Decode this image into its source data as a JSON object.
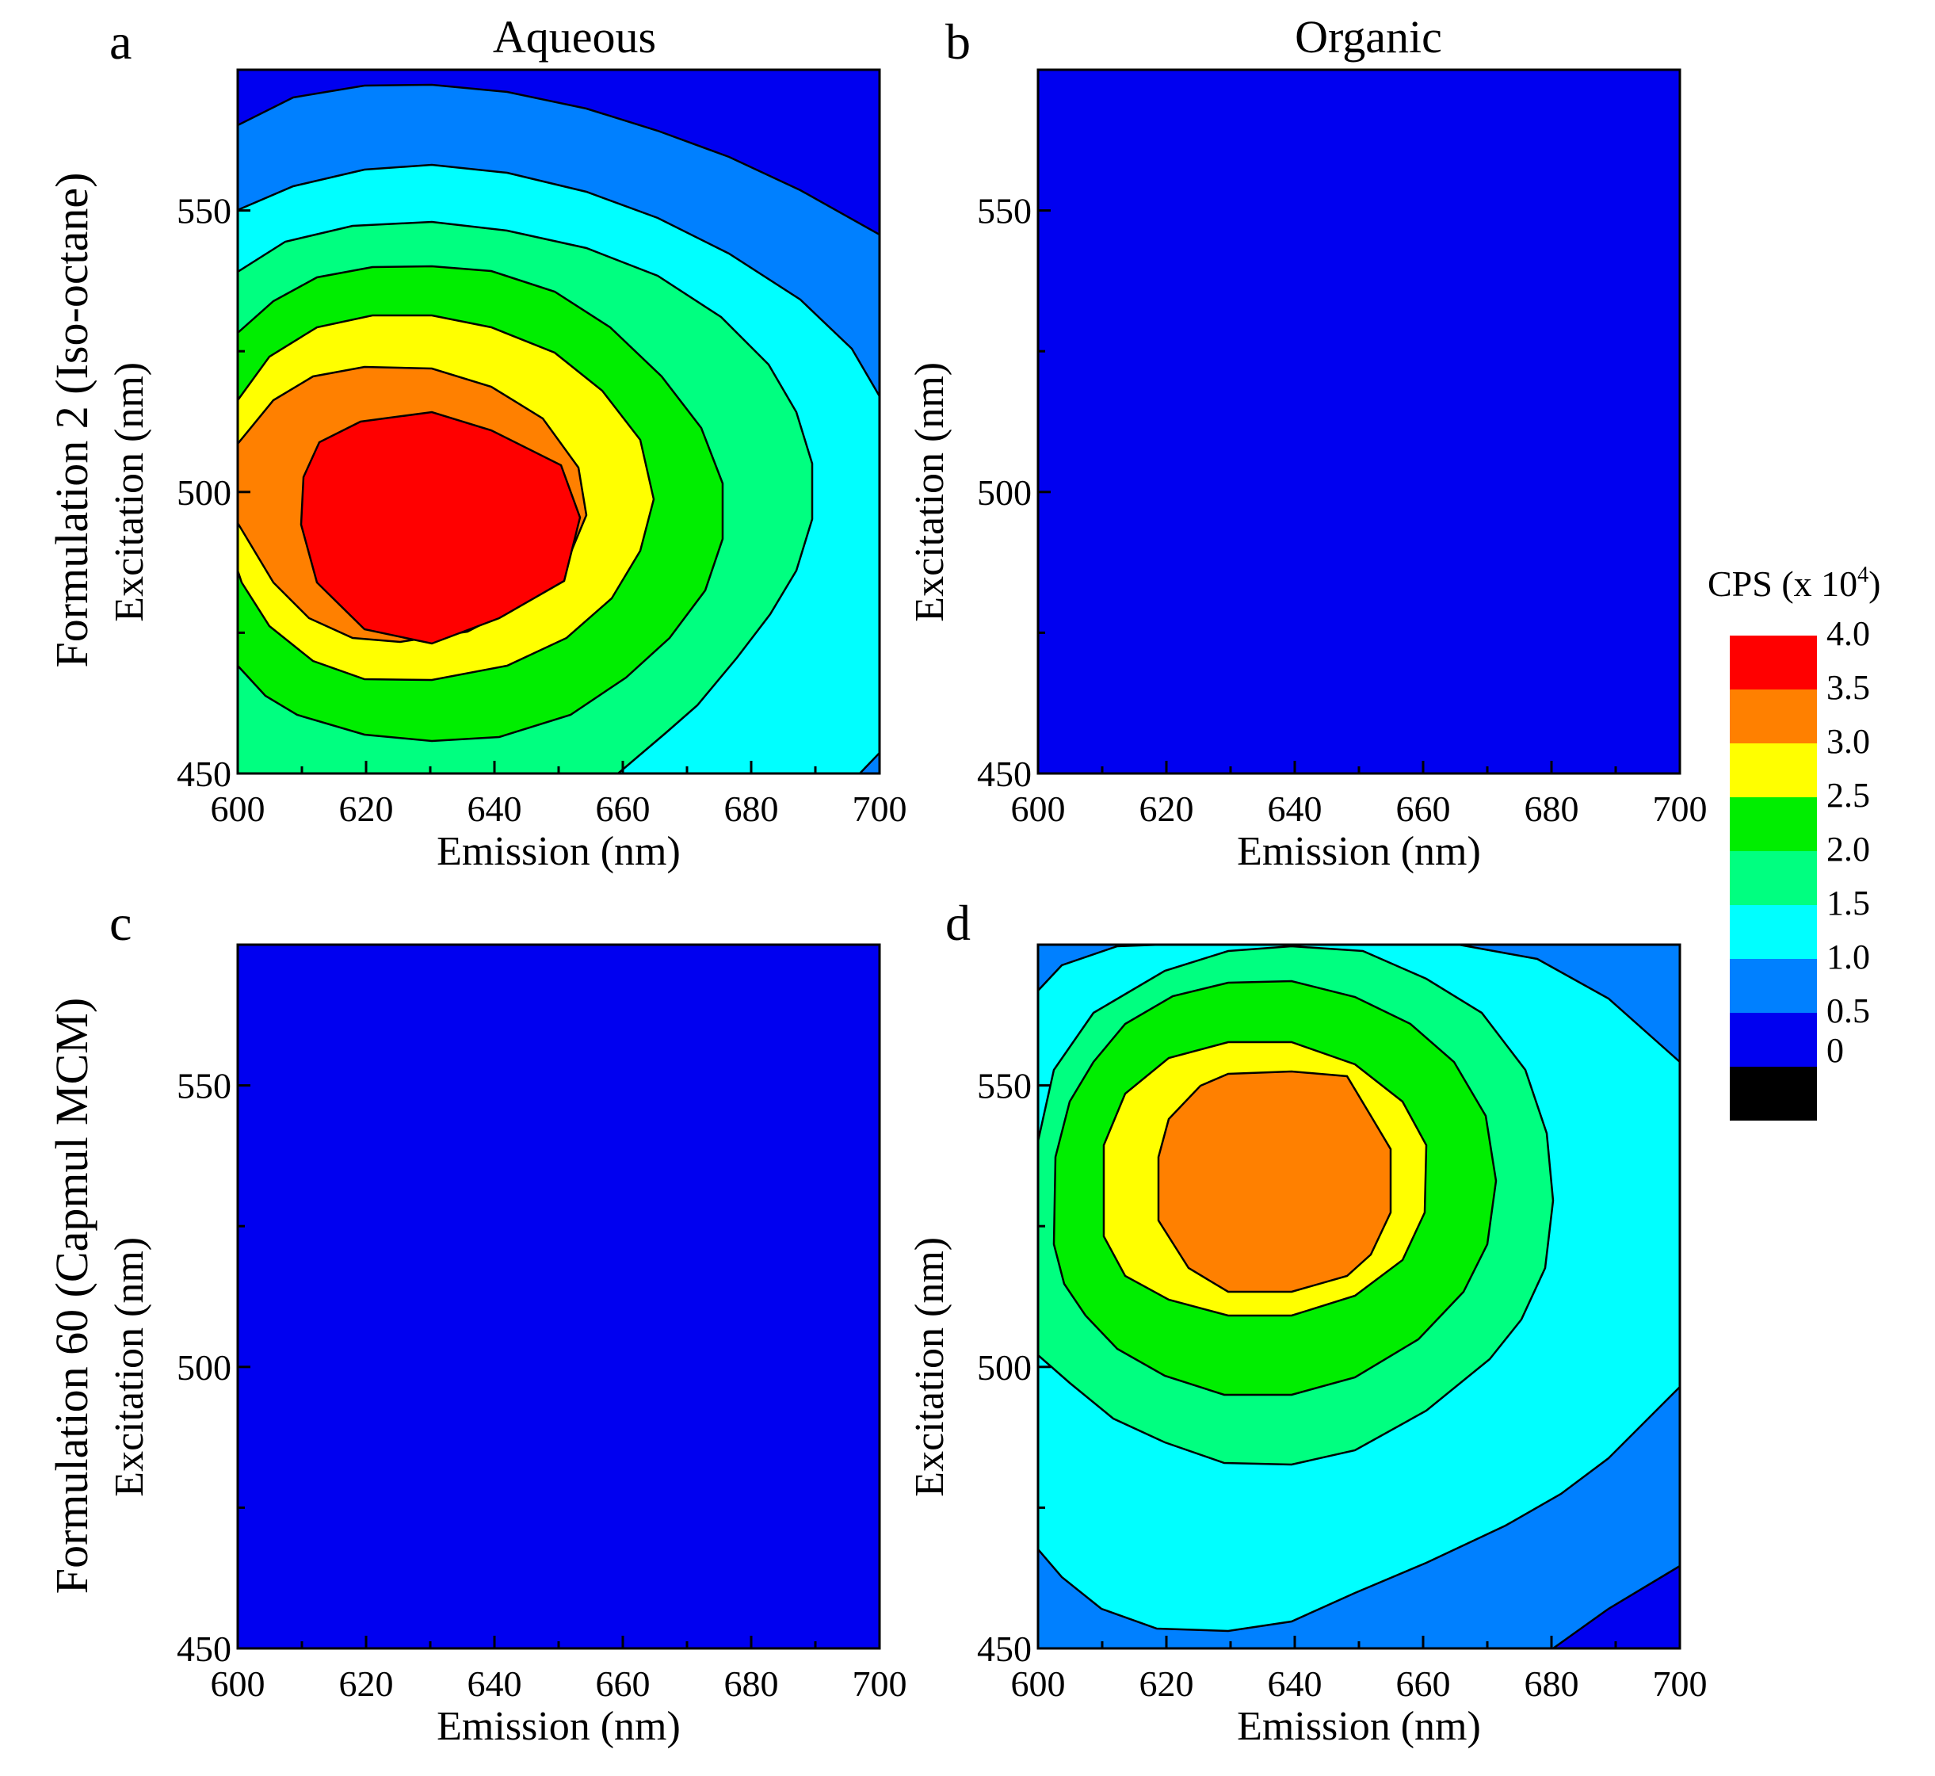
{
  "figure": {
    "col_titles": [
      "Aqueous",
      "Organic"
    ],
    "row_titles": [
      "Formulation 2 (Iso-octane)",
      "Formulation 60 (Capmul MCM)"
    ]
  },
  "colorbar": {
    "title": "CPS (x 10",
    "title_sup": "4",
    "title_close": ")",
    "levels": [
      "0",
      "0.5",
      "1.0",
      "1.5",
      "2.0",
      "2.5",
      "3.0",
      "3.5",
      "4.0"
    ],
    "colors": [
      "#000000",
      "#0000f0",
      "#0080ff",
      "#00ffff",
      "#00ff80",
      "#00ee00",
      "#ffff00",
      "#ff8000",
      "#ff0000"
    ]
  },
  "chart_data": [
    {
      "panel": "a",
      "type": "heatmap",
      "title": "Aqueous",
      "xlabel": "Emission (nm)",
      "ylabel": "Excitation (nm)",
      "row_label": "Formulation 2 (Iso-octane)",
      "xlim": [
        600,
        700
      ],
      "ylim": [
        450,
        575
      ],
      "xticks": [
        600,
        620,
        640,
        660,
        680,
        700
      ],
      "yticks": [
        450,
        500,
        550
      ],
      "z_unit": "CPS (x 10^4)",
      "peak": {
        "emission": 625,
        "excitation": 495,
        "cps_x1e4": 4.0
      },
      "contour_levels": [
        0.5,
        1.0,
        1.5,
        2.0,
        2.5,
        3.0,
        3.5
      ]
    },
    {
      "panel": "b",
      "type": "heatmap",
      "title": "Organic",
      "xlabel": "Emission (nm)",
      "ylabel": "Excitation (nm)",
      "xlim": [
        600,
        700
      ],
      "ylim": [
        450,
        575
      ],
      "xticks": [
        600,
        620,
        640,
        660,
        680,
        700
      ],
      "yticks": [
        450,
        500,
        550
      ],
      "z_unit": "CPS (x 10^4)",
      "uniform_range": [
        0,
        0.5
      ]
    },
    {
      "panel": "c",
      "type": "heatmap",
      "xlabel": "Emission (nm)",
      "ylabel": "Excitation (nm)",
      "row_label": "Formulation 60 (Capmul MCM)",
      "xlim": [
        600,
        700
      ],
      "ylim": [
        450,
        575
      ],
      "xticks": [
        600,
        620,
        640,
        660,
        680,
        700
      ],
      "yticks": [
        450,
        500,
        550
      ],
      "z_unit": "CPS (x 10^4)",
      "uniform_range": [
        0,
        0.5
      ]
    },
    {
      "panel": "d",
      "type": "heatmap",
      "xlabel": "Emission (nm)",
      "ylabel": "Excitation (nm)",
      "xlim": [
        600,
        700
      ],
      "ylim": [
        450,
        575
      ],
      "xticks": [
        600,
        620,
        640,
        660,
        680,
        700
      ],
      "yticks": [
        450,
        500,
        550
      ],
      "z_unit": "CPS (x 10^4)",
      "peak": {
        "emission": 638,
        "excitation": 526,
        "cps_x1e4": 3.3
      },
      "contour_levels": [
        0.5,
        1.0,
        1.5,
        2.0,
        2.5,
        3.0
      ]
    }
  ]
}
